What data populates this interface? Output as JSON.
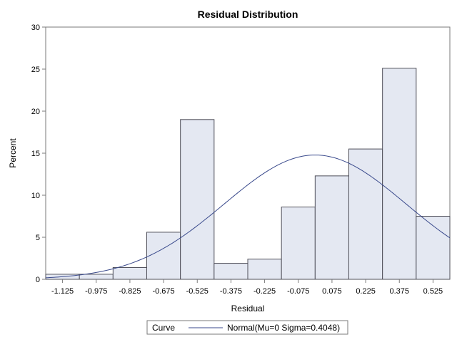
{
  "chart_data": {
    "type": "bar",
    "title": "Residual Distribution",
    "xlabel": "Residual",
    "ylabel": "Percent",
    "xlim": [
      -1.2,
      0.6
    ],
    "ylim": [
      0,
      30
    ],
    "yticks": [
      0,
      5,
      10,
      15,
      20,
      25,
      30
    ],
    "bin_width": 0.15,
    "categories": [
      "-1.125",
      "-0.975",
      "-0.825",
      "-0.675",
      "-0.525",
      "-0.375",
      "-0.225",
      "-0.075",
      "0.075",
      "0.225",
      "0.375",
      "0.525"
    ],
    "midpoints": [
      -1.125,
      -0.975,
      -0.825,
      -0.675,
      -0.525,
      -0.375,
      -0.225,
      -0.075,
      0.075,
      0.225,
      0.375,
      0.525
    ],
    "values": [
      0.6,
      0.6,
      1.4,
      5.6,
      19.0,
      1.9,
      2.4,
      8.6,
      12.3,
      15.5,
      25.1,
      7.5
    ],
    "curve": {
      "label": "Normal(Mu=0 Sigma=0.4048)",
      "mu": 0,
      "sigma": 0.4048
    },
    "legend": {
      "title": "Curve",
      "position": "bottom",
      "entries": [
        "Normal(Mu=0 Sigma=0.4048)"
      ]
    },
    "grid": false,
    "colors": {
      "bar_fill": "#e4e8f2",
      "bar_stroke": "#50505a",
      "curve": "#3a4a8c",
      "axis": "#7a7a7a"
    }
  }
}
